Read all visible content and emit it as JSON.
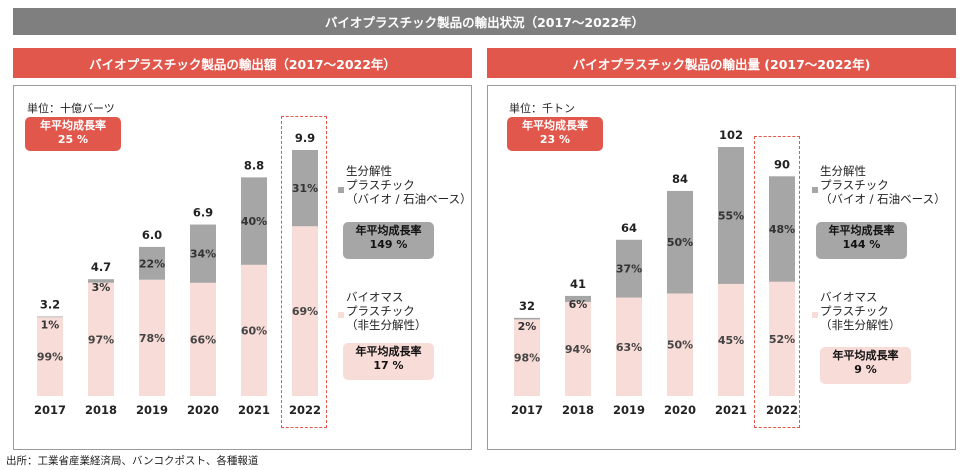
{
  "main_title": "バイオプラスチック製品の輸出状況（2017～2022年）",
  "source": "出所：工業省産業経済局、バンコクポスト、各種報道",
  "legend": {
    "bio_degradable": [
      "生分解性",
      "プラスチック",
      "（バイオ / 石油ベース）"
    ],
    "bio_mass": [
      "バイオマス",
      "プラスチック",
      "（非生分解性）"
    ]
  },
  "colors": {
    "degradable": "#a6a6a6",
    "biomass": "#f8dcd8",
    "accent": "#e2574c",
    "header": "#7f7f7f"
  },
  "chart_data": [
    {
      "type": "bar",
      "stacked": true,
      "title": "バイオプラスチック製品の輸出額（2017～2022年）",
      "unit": "単位：十億バーツ",
      "categories": [
        "2017",
        "2018",
        "2019",
        "2020",
        "2021",
        "2022"
      ],
      "totals": [
        3.2,
        4.7,
        6.0,
        6.9,
        8.8,
        9.9
      ],
      "total_labels": [
        "3.2",
        "4.7",
        "6.0",
        "6.9",
        "8.8",
        "9.9"
      ],
      "series": [
        {
          "name": "バイオマスプラスチック（非生分解性）",
          "share_pct": [
            99,
            97,
            78,
            66,
            60,
            69
          ]
        },
        {
          "name": "生分解性プラスチック（バイオ / 石油ベース）",
          "share_pct": [
            1,
            3,
            22,
            34,
            40,
            31
          ]
        }
      ],
      "highlight": "2022",
      "ylim": [
        0,
        9.9
      ],
      "cagr_total": [
        "年平均成長率",
        "25 %"
      ],
      "cagr_degradable": [
        "年平均成長率",
        "149 %"
      ],
      "cagr_biomass": [
        "年平均成長率",
        "17 %"
      ]
    },
    {
      "type": "bar",
      "stacked": true,
      "title": "バイオプラスチック製品の輸出量 (2017～2022年)",
      "unit": "単位：千トン",
      "categories": [
        "2017",
        "2018",
        "2019",
        "2020",
        "2021",
        "2022"
      ],
      "totals": [
        32,
        41,
        64,
        84,
        102,
        90
      ],
      "total_labels": [
        "32",
        "41",
        "64",
        "84",
        "102",
        "90"
      ],
      "series": [
        {
          "name": "バイオマスプラスチック（非生分解性）",
          "share_pct": [
            98,
            94,
            63,
            50,
            45,
            52
          ]
        },
        {
          "name": "生分解性プラスチック（バイオ / 石油ベース）",
          "share_pct": [
            2,
            6,
            37,
            50,
            55,
            48
          ]
        }
      ],
      "highlight": "2022",
      "ylim": [
        0,
        102
      ],
      "cagr_total": [
        "年平均成長率",
        "23 %"
      ],
      "cagr_degradable": [
        "年平均成長率",
        "144 %"
      ],
      "cagr_biomass": [
        "年平均成長率",
        "9 %"
      ]
    }
  ]
}
